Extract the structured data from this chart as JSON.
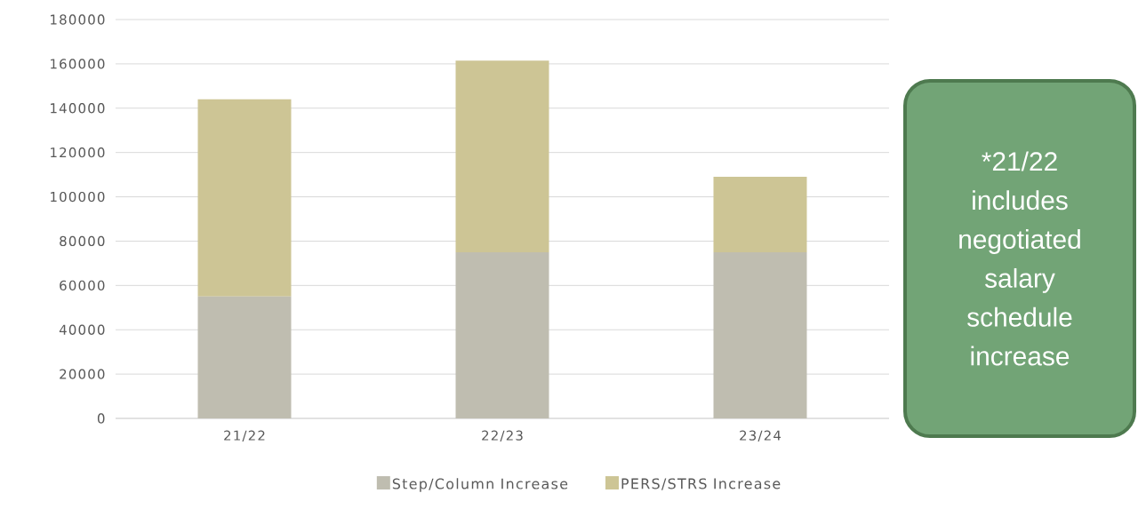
{
  "chart_data": {
    "type": "bar",
    "stacked": true,
    "categories": [
      "21/22",
      "22/23",
      "23/24"
    ],
    "series": [
      {
        "name": "Step/Column Increase",
        "color": "#bfbdb0",
        "values": [
          55000,
          75000,
          75000
        ]
      },
      {
        "name": "PERS/STRS Increase",
        "color": "#cdc595",
        "values": [
          89000,
          86500,
          34000
        ]
      }
    ],
    "ylim": [
      0,
      180000
    ],
    "yticks": [
      0,
      20000,
      40000,
      60000,
      80000,
      100000,
      120000,
      140000,
      160000,
      180000
    ],
    "grid": "y",
    "legend": "bottom",
    "annotations": [
      "*21/22 includes negotiated salary schedule increase"
    ]
  }
}
